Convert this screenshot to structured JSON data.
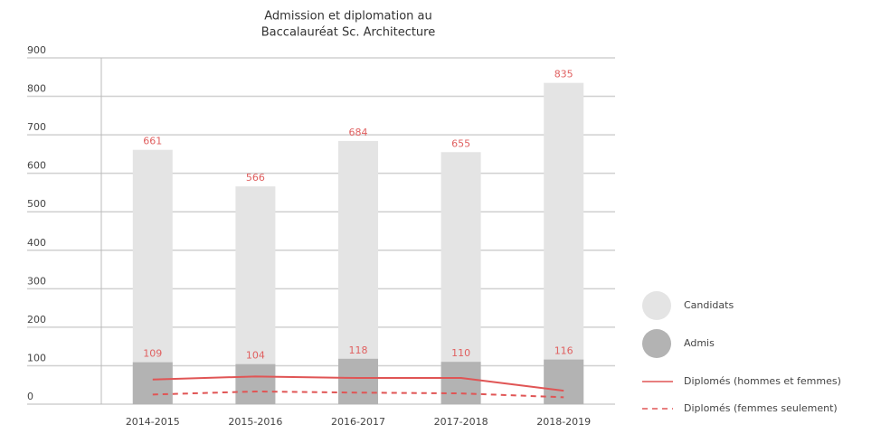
{
  "chart_data": {
    "type": "bar",
    "title": [
      "Admission et diplomation au",
      "Baccalauréat Sc. Architecture"
    ],
    "categories": [
      "2014-2015",
      "2015-2016",
      "2016-2017",
      "2017-2018",
      "2018-2019"
    ],
    "series": [
      {
        "name": "Candidats",
        "type": "bar",
        "color": "#e4e4e4",
        "values": [
          661,
          566,
          684,
          655,
          835
        ]
      },
      {
        "name": "Admis",
        "type": "bar",
        "color": "#b3b3b3",
        "values": [
          109,
          104,
          118,
          110,
          116
        ]
      },
      {
        "name": "Diplomés (hommes et femmes)",
        "type": "line",
        "color": "#e05555",
        "dashed": false,
        "values": [
          64,
          72,
          68,
          68,
          35
        ]
      },
      {
        "name": "Diplomés (femmes seulement)",
        "type": "line",
        "color": "#e05555",
        "dashed": true,
        "values": [
          25,
          33,
          30,
          28,
          18
        ]
      }
    ],
    "ylim": [
      0,
      900
    ],
    "yticks": [
      0,
      100,
      200,
      300,
      400,
      500,
      600,
      700,
      800,
      900
    ],
    "grid": true,
    "legend": "right"
  }
}
